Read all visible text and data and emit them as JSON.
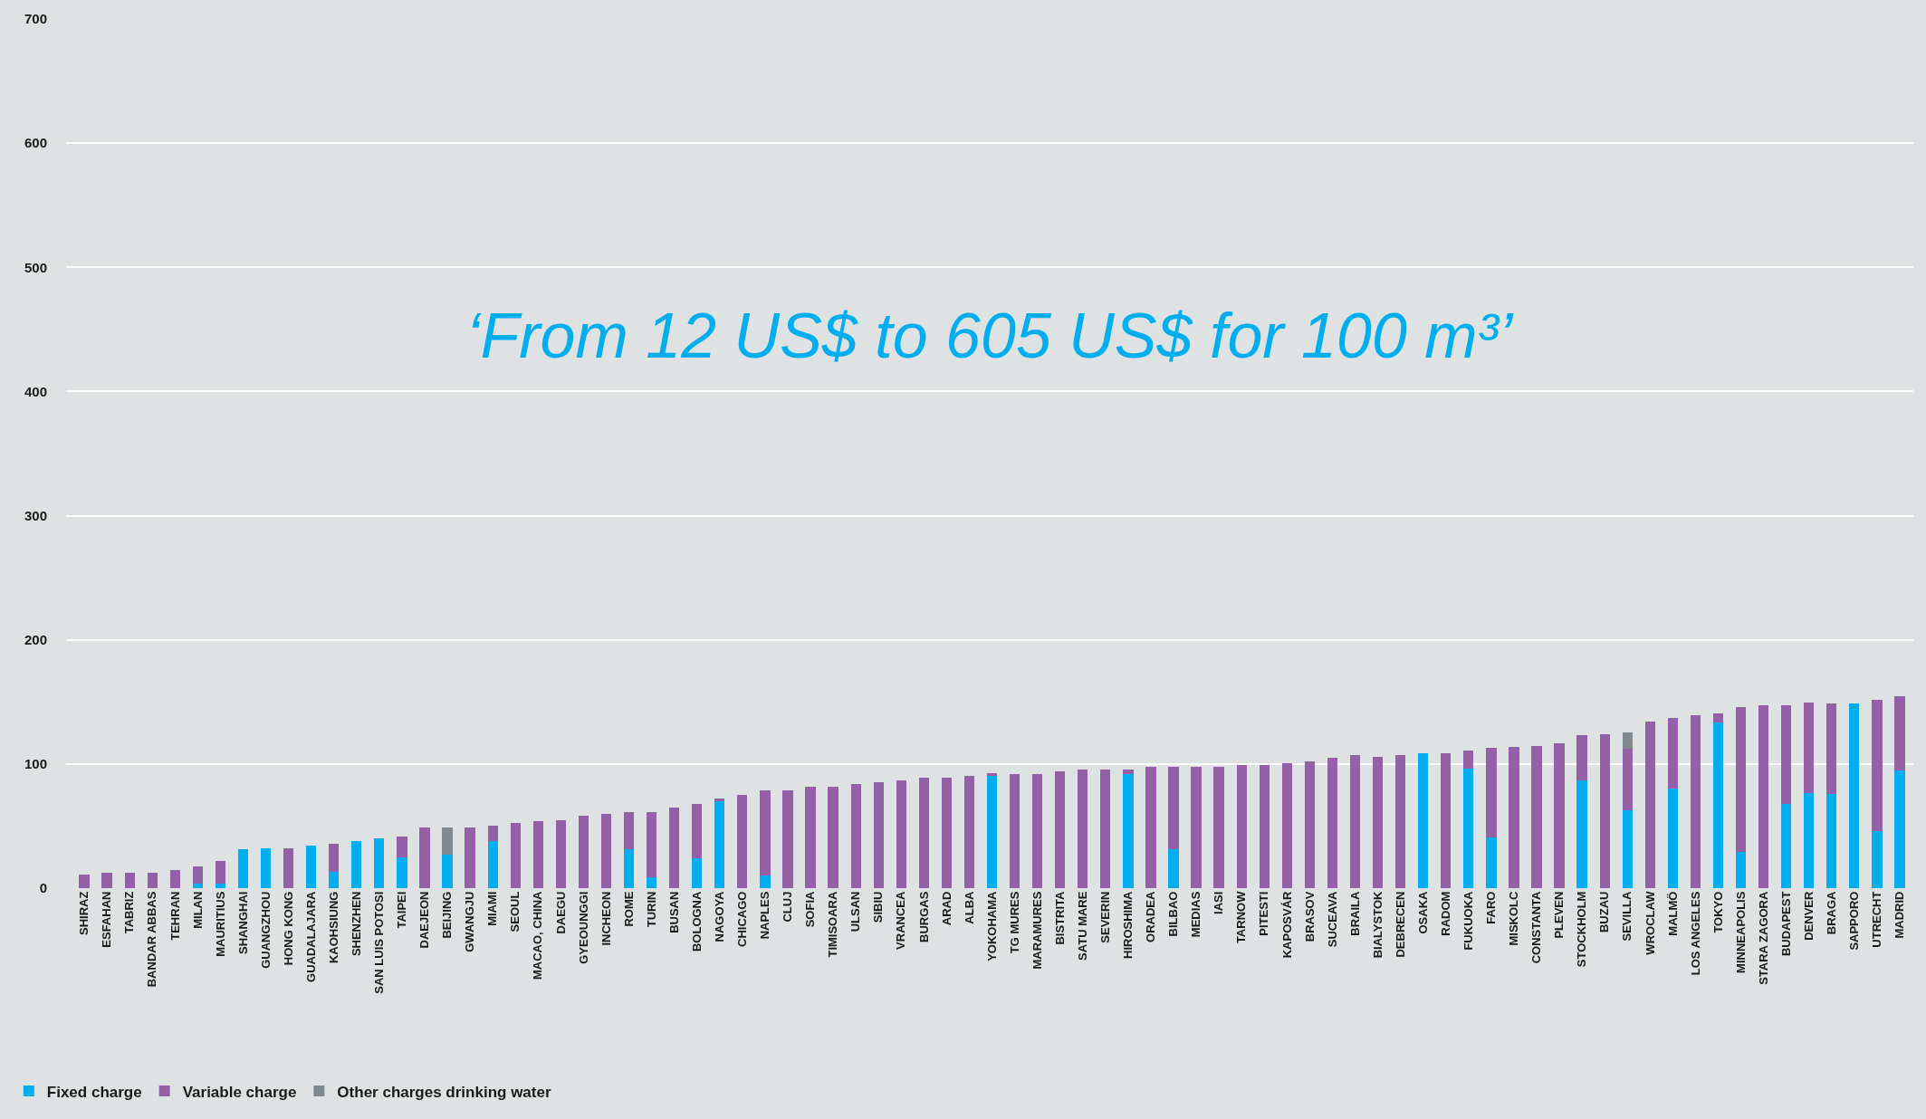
{
  "chart_data": {
    "type": "bar",
    "stacked": true,
    "annotations": [
      "‘From 12 US$ to 605 US$ for 100 m³’"
    ],
    "categories": [
      "SHIRAZ",
      "ESFAHAN",
      "TABRIZ",
      "BANDAR ABBAS",
      "TEHRAN",
      "MILAN",
      "MAURITIUS",
      "SHANGHAI",
      "GUANGZHOU",
      "HONG KONG",
      "GUADALAJARA",
      "KAOHSIUNG",
      "SHENZHEN",
      "SAN LUIS POTOSI",
      "TAIPEI",
      "DAEJEON",
      "BEIJING",
      "GWANGJU",
      "MIAMI",
      "SEOUL",
      "MACAO, CHINA",
      "DAEGU",
      "GYEOUNGGI",
      "INCHEON",
      "ROME",
      "TURIN",
      "BUSAN",
      "BOLOGNA",
      "NAGOYA",
      "CHICAGO",
      "NAPLES",
      "CLUJ",
      "SOFIA",
      "TIMISOARA",
      "ULSAN",
      "SIBIU",
      "VRANCEA",
      "BURGAS",
      "ARAD",
      "ALBA",
      "YOKOHAMA",
      "TG MURES",
      "MARAMURES",
      "BISTRITA",
      "SATU MARE",
      "SEVERIN",
      "HIROSHIMA",
      "ORADEA",
      "BILBAO",
      "MEDIAS",
      "IASI",
      "TARNOW",
      "PITESTI",
      "KAPOSVÁR",
      "BRASOV",
      "SUCEAVA",
      "BRAILA",
      "BIALYSTOK",
      "DEBRECEN",
      "OSAKA",
      "RADOM",
      "FUKUOKA",
      "FARO",
      "MISKOLC",
      "CONSTANTA",
      "PLEVEN",
      "STOCKHOLM",
      "BUZAU",
      "SEVILLA",
      "WROCLAW",
      "MALMÖ",
      "LOS ANGELES",
      "TOKYO",
      "MINNEAPOLIS",
      "STARA ZAGORA",
      "BUDAPEST",
      "DENVER",
      "BRAGA",
      "SAPPORO",
      "UTRECHT",
      "MADRID"
    ],
    "series": [
      {
        "name": "Fixed charge",
        "color": "#00aeef",
        "values": [
          null,
          null,
          null,
          null,
          null,
          4,
          4,
          31,
          32,
          null,
          34,
          13,
          38,
          40,
          24.5,
          null,
          27,
          null,
          38,
          null,
          null,
          null,
          null,
          null,
          31,
          9,
          null,
          24,
          70,
          null,
          10.5,
          null,
          null,
          null,
          null,
          null,
          null,
          null,
          null,
          null,
          90.5,
          null,
          null,
          null,
          null,
          null,
          92,
          null,
          31,
          null,
          null,
          null,
          null,
          null,
          null,
          null,
          null,
          null,
          null,
          109,
          null,
          96,
          41,
          null,
          null,
          null,
          86.5,
          null,
          62.5,
          null,
          80.5,
          null,
          133.5,
          29,
          null,
          68,
          76.5,
          75.5,
          148.5,
          46,
          95
        ]
      },
      {
        "name": "Variable charge",
        "color": "#9461a8",
        "values": [
          11,
          12.5,
          12.5,
          12.5,
          14.5,
          13.5,
          18,
          null,
          null,
          32,
          null,
          22.5,
          null,
          null,
          17,
          48.5,
          null,
          48.5,
          12.5,
          52.5,
          54,
          54.5,
          58,
          59.5,
          30,
          52.5,
          65,
          44,
          2,
          75,
          68.5,
          79,
          81.5,
          81.5,
          83.5,
          85,
          87,
          89,
          89,
          90.5,
          2,
          92,
          92,
          94,
          95.5,
          95.5,
          3.5,
          98,
          66.5,
          98,
          98,
          99,
          99,
          100.5,
          102,
          105,
          107,
          106,
          107,
          null,
          109,
          15,
          72,
          114,
          114.5,
          116.5,
          37,
          124,
          50,
          134.5,
          56.5,
          139,
          7,
          117,
          147.5,
          79.5,
          73,
          73,
          null,
          106,
          59.5
        ]
      },
      {
        "name": "Other charges drinking water",
        "color": "#808a8e",
        "values": [
          null,
          null,
          null,
          null,
          null,
          null,
          null,
          null,
          null,
          null,
          null,
          null,
          null,
          null,
          null,
          null,
          21.5,
          null,
          null,
          null,
          null,
          null,
          null,
          null,
          null,
          null,
          null,
          null,
          null,
          null,
          null,
          null,
          null,
          null,
          null,
          null,
          null,
          null,
          null,
          null,
          null,
          null,
          null,
          null,
          null,
          null,
          null,
          null,
          null,
          null,
          null,
          null,
          null,
          null,
          null,
          null,
          null,
          null,
          null,
          null,
          null,
          null,
          null,
          null,
          null,
          null,
          null,
          null,
          13,
          null,
          null,
          null,
          null,
          null,
          null,
          null,
          null,
          null,
          null,
          null,
          null
        ]
      }
    ],
    "ylim": [
      0,
      700
    ],
    "yticks": [
      0,
      100,
      200,
      300,
      400,
      500,
      600,
      700
    ],
    "grid": "y",
    "legend": "bottom left"
  }
}
